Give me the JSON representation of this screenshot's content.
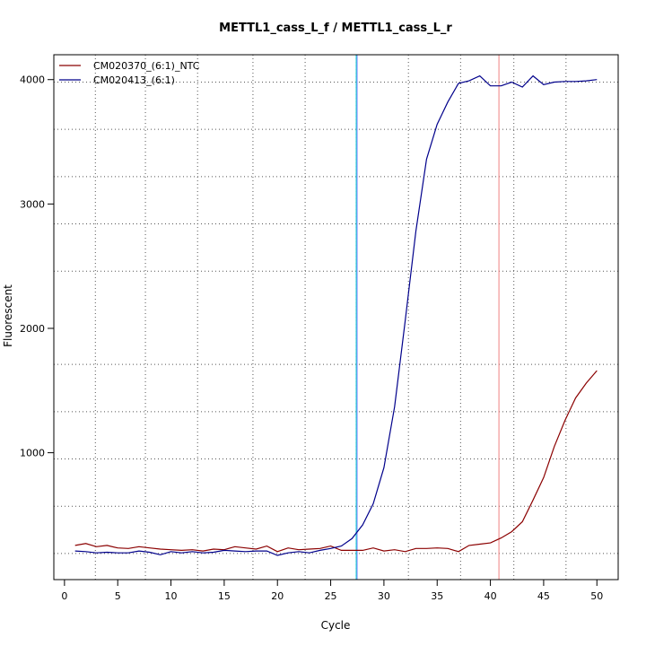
{
  "chart_data": {
    "type": "line",
    "title": "METTL1_cass_L_f / METTL1_cass_L_r",
    "xlabel": "Cycle",
    "ylabel": "Fluorescent",
    "xlim": [
      -1,
      52
    ],
    "ylim": [
      -20,
      4200
    ],
    "xticks": [
      0,
      5,
      10,
      15,
      20,
      25,
      30,
      35,
      40,
      45,
      50
    ],
    "yticks": [
      1000,
      2000,
      3000,
      4000
    ],
    "grid": true,
    "grid_style": "dotted",
    "grid_x": [
      2.9,
      7.6,
      12.5,
      17.7,
      22.6,
      27.4,
      32.3,
      37.2,
      42.2,
      47.1
    ],
    "grid_y": [
      190,
      570,
      950,
      1330,
      1710,
      2460,
      2840,
      3220,
      3600,
      3980
    ],
    "legend_position": "top-left",
    "threshold_lines": [
      {
        "x": 27.4,
        "color": "#00cccc"
      },
      {
        "x": 27.4,
        "color": "#8888ff"
      },
      {
        "x": 40.8,
        "color": "#f08080"
      }
    ],
    "series": [
      {
        "name": "CM020370_(6:1)_NTC",
        "color": "#8b0000",
        "x": [
          1,
          2,
          3,
          4,
          5,
          6,
          7,
          8,
          9,
          10,
          11,
          12,
          13,
          14,
          15,
          16,
          17,
          18,
          19,
          20,
          21,
          22,
          23,
          24,
          25,
          26,
          27,
          28,
          29,
          30,
          31,
          32,
          33,
          34,
          35,
          36,
          37,
          38,
          39,
          40,
          41,
          42,
          43,
          44,
          45,
          46,
          47,
          48,
          49,
          50
        ],
        "values": [
          255,
          270,
          245,
          255,
          235,
          230,
          245,
          235,
          225,
          220,
          215,
          220,
          210,
          225,
          220,
          245,
          235,
          225,
          250,
          205,
          235,
          220,
          225,
          230,
          250,
          215,
          215,
          215,
          235,
          210,
          220,
          205,
          230,
          230,
          235,
          230,
          205,
          255,
          265,
          275,
          315,
          365,
          445,
          620,
          800,
          1050,
          1260,
          1440,
          1560,
          1660
        ]
      },
      {
        "name": "CM020413_(6:1)",
        "color": "#00008b",
        "x": [
          1,
          2,
          3,
          4,
          5,
          6,
          7,
          8,
          9,
          10,
          11,
          12,
          13,
          14,
          15,
          16,
          17,
          18,
          19,
          20,
          21,
          22,
          23,
          24,
          25,
          26,
          27,
          28,
          29,
          30,
          31,
          32,
          33,
          34,
          35,
          36,
          37,
          38,
          39,
          40,
          41,
          42,
          43,
          44,
          45,
          46,
          47,
          48,
          49,
          50
        ],
        "values": [
          210,
          205,
          195,
          200,
          195,
          195,
          210,
          200,
          180,
          205,
          195,
          205,
          195,
          200,
          215,
          210,
          205,
          210,
          210,
          175,
          195,
          205,
          195,
          215,
          230,
          250,
          310,
          420,
          590,
          880,
          1370,
          2060,
          2780,
          3360,
          3640,
          3820,
          3970,
          3990,
          4030,
          3950,
          3950,
          3980,
          3940,
          4030,
          3960,
          3980,
          3985,
          3985,
          3990,
          4000
        ]
      }
    ]
  }
}
